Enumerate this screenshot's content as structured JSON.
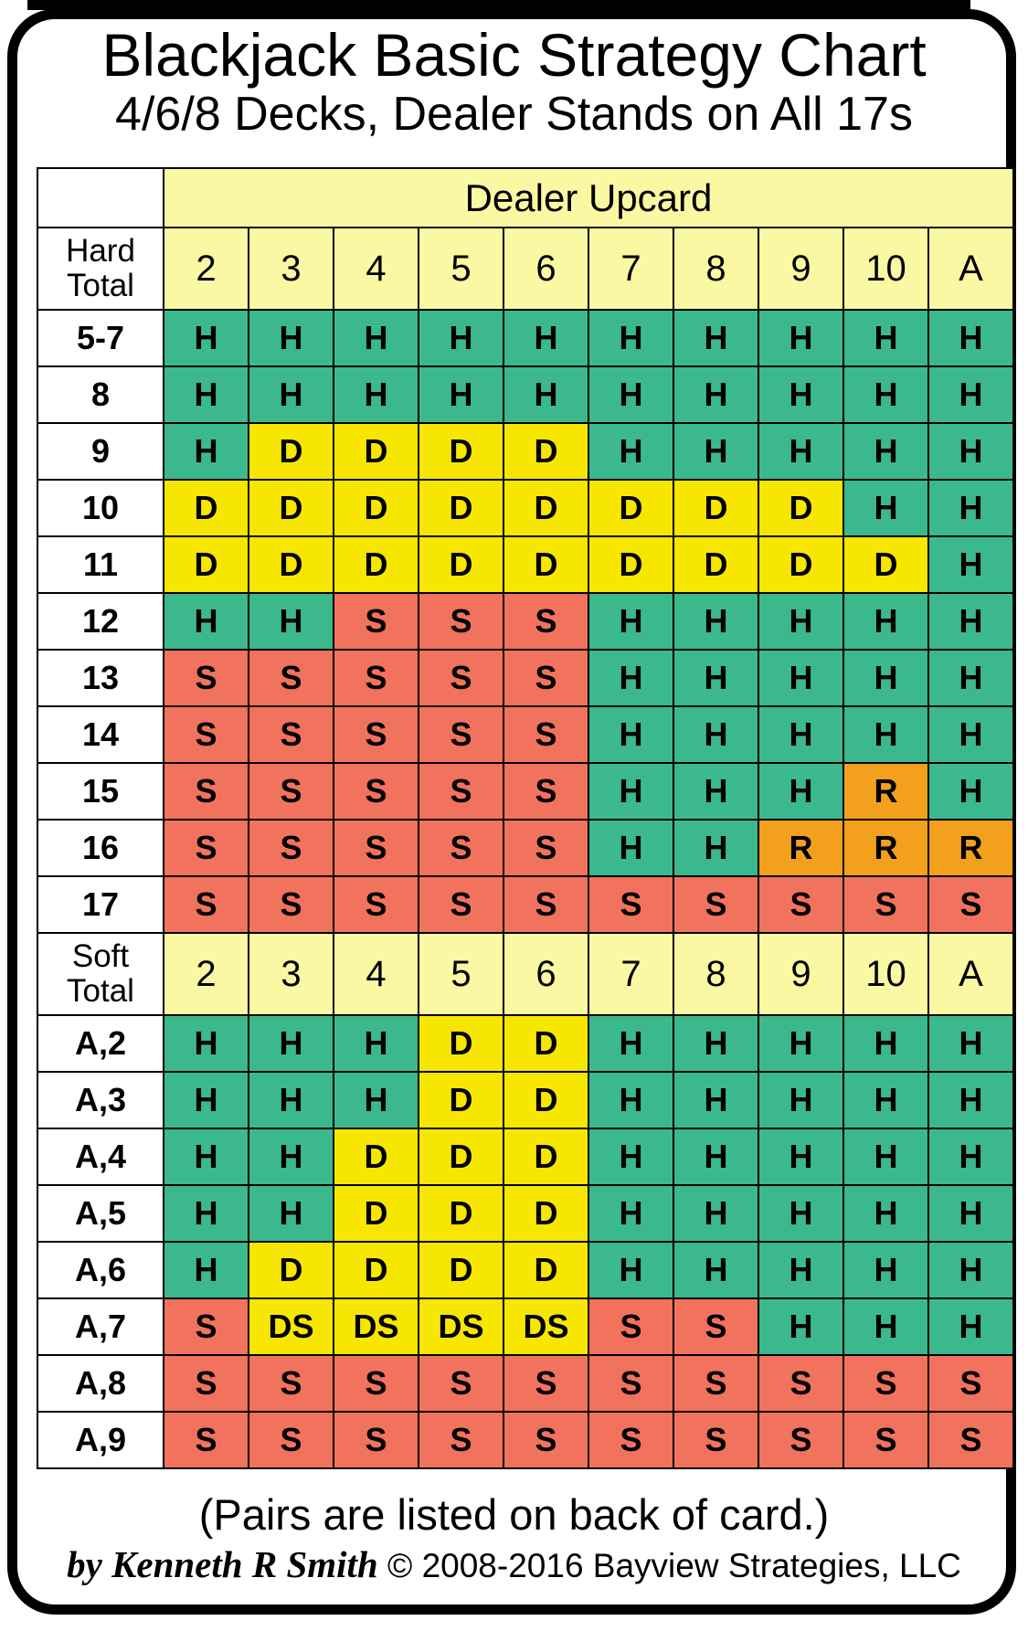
{
  "title": "Blackjack Basic Strategy Chart",
  "subtitle": "4/6/8 Decks, Dealer Stands on All 17s",
  "footer": {
    "pairs_note": "(Pairs are listed on back of card.)",
    "author": "by Kenneth R Smith",
    "copyright": "© 2008-2016 Bayview Strategies, LLC"
  },
  "colors": {
    "hit": "#3CB98C",
    "double": "#F7E600",
    "stand": "#F1725D",
    "surrender": "#F3A01D",
    "double_or_stand": "#F7E600",
    "header_bg": "#FAF8A2",
    "label_bg": "#FFFFFF",
    "grid": "#000000",
    "text": "#000000"
  },
  "chart_data": {
    "type": "table",
    "title": "Blackjack Basic Strategy Chart",
    "subtitle": "4/6/8 Decks, Dealer Stands on All 17s",
    "dealer_header": "Dealer Upcard",
    "upcards": [
      "2",
      "3",
      "4",
      "5",
      "6",
      "7",
      "8",
      "9",
      "10",
      "A"
    ],
    "cell_colors": {
      "H": "#3CB98C",
      "D": "#F7E600",
      "S": "#F1725D",
      "R": "#F3A01D",
      "DS": "#F7E600"
    },
    "sections": [
      {
        "label": "Hard Total",
        "rows": [
          {
            "label": "5-7",
            "cells": [
              "H",
              "H",
              "H",
              "H",
              "H",
              "H",
              "H",
              "H",
              "H",
              "H"
            ]
          },
          {
            "label": "8",
            "cells": [
              "H",
              "H",
              "H",
              "H",
              "H",
              "H",
              "H",
              "H",
              "H",
              "H"
            ]
          },
          {
            "label": "9",
            "cells": [
              "H",
              "D",
              "D",
              "D",
              "D",
              "H",
              "H",
              "H",
              "H",
              "H"
            ]
          },
          {
            "label": "10",
            "cells": [
              "D",
              "D",
              "D",
              "D",
              "D",
              "D",
              "D",
              "D",
              "H",
              "H"
            ]
          },
          {
            "label": "11",
            "cells": [
              "D",
              "D",
              "D",
              "D",
              "D",
              "D",
              "D",
              "D",
              "D",
              "H"
            ]
          },
          {
            "label": "12",
            "cells": [
              "H",
              "H",
              "S",
              "S",
              "S",
              "H",
              "H",
              "H",
              "H",
              "H"
            ]
          },
          {
            "label": "13",
            "cells": [
              "S",
              "S",
              "S",
              "S",
              "S",
              "H",
              "H",
              "H",
              "H",
              "H"
            ]
          },
          {
            "label": "14",
            "cells": [
              "S",
              "S",
              "S",
              "S",
              "S",
              "H",
              "H",
              "H",
              "H",
              "H"
            ]
          },
          {
            "label": "15",
            "cells": [
              "S",
              "S",
              "S",
              "S",
              "S",
              "H",
              "H",
              "H",
              "R",
              "H"
            ]
          },
          {
            "label": "16",
            "cells": [
              "S",
              "S",
              "S",
              "S",
              "S",
              "H",
              "H",
              "R",
              "R",
              "R"
            ]
          },
          {
            "label": "17",
            "cells": [
              "S",
              "S",
              "S",
              "S",
              "S",
              "S",
              "S",
              "S",
              "S",
              "S"
            ]
          }
        ]
      },
      {
        "label": "Soft Total",
        "rows": [
          {
            "label": "A,2",
            "cells": [
              "H",
              "H",
              "H",
              "D",
              "D",
              "H",
              "H",
              "H",
              "H",
              "H"
            ]
          },
          {
            "label": "A,3",
            "cells": [
              "H",
              "H",
              "H",
              "D",
              "D",
              "H",
              "H",
              "H",
              "H",
              "H"
            ]
          },
          {
            "label": "A,4",
            "cells": [
              "H",
              "H",
              "D",
              "D",
              "D",
              "H",
              "H",
              "H",
              "H",
              "H"
            ]
          },
          {
            "label": "A,5",
            "cells": [
              "H",
              "H",
              "D",
              "D",
              "D",
              "H",
              "H",
              "H",
              "H",
              "H"
            ]
          },
          {
            "label": "A,6",
            "cells": [
              "H",
              "D",
              "D",
              "D",
              "D",
              "H",
              "H",
              "H",
              "H",
              "H"
            ]
          },
          {
            "label": "A,7",
            "cells": [
              "S",
              "DS",
              "DS",
              "DS",
              "DS",
              "S",
              "S",
              "H",
              "H",
              "H"
            ]
          },
          {
            "label": "A,8",
            "cells": [
              "S",
              "S",
              "S",
              "S",
              "S",
              "S",
              "S",
              "S",
              "S",
              "S"
            ]
          },
          {
            "label": "A,9",
            "cells": [
              "S",
              "S",
              "S",
              "S",
              "S",
              "S",
              "S",
              "S",
              "S",
              "S"
            ]
          }
        ]
      }
    ],
    "layout": {
      "label_col_width": 136,
      "data_col_width": 91,
      "grid_on": true
    }
  }
}
